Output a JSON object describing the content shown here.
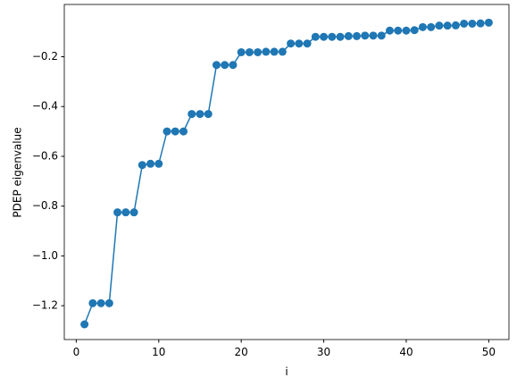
{
  "chart_data": {
    "type": "line",
    "xlabel": "i",
    "ylabel": "PDEP eigenvalue",
    "color": "#1f77b4",
    "x": [
      1,
      2,
      3,
      4,
      5,
      6,
      7,
      8,
      9,
      10,
      11,
      12,
      13,
      14,
      15,
      16,
      17,
      18,
      19,
      20,
      21,
      22,
      23,
      24,
      25,
      26,
      27,
      28,
      29,
      30,
      31,
      32,
      33,
      34,
      35,
      36,
      37,
      38,
      39,
      40,
      41,
      42,
      43,
      44,
      45,
      46,
      47,
      48,
      49,
      50
    ],
    "values": [
      -1.275,
      -1.19,
      -1.19,
      -1.19,
      -0.825,
      -0.825,
      -0.825,
      -0.635,
      -0.63,
      -0.63,
      -0.5,
      -0.5,
      -0.5,
      -0.43,
      -0.43,
      -0.43,
      -0.233,
      -0.233,
      -0.233,
      -0.182,
      -0.182,
      -0.182,
      -0.18,
      -0.18,
      -0.18,
      -0.147,
      -0.147,
      -0.147,
      -0.12,
      -0.12,
      -0.12,
      -0.12,
      -0.117,
      -0.117,
      -0.115,
      -0.115,
      -0.115,
      -0.095,
      -0.095,
      -0.095,
      -0.093,
      -0.081,
      -0.081,
      -0.075,
      -0.075,
      -0.074,
      -0.067,
      -0.067,
      -0.066,
      -0.063
    ],
    "xlim": [
      -1.45,
      52.45
    ],
    "xticks": [
      0,
      10,
      20,
      30,
      40,
      50
    ],
    "ylim": [
      -1.336,
      0.01
    ],
    "yticks": [
      {
        "value": -1.2,
        "label": "−1.2"
      },
      {
        "value": -1.0,
        "label": "−1.0"
      },
      {
        "value": -0.8,
        "label": "−0.8"
      },
      {
        "value": -0.6,
        "label": "−0.6"
      },
      {
        "value": -0.4,
        "label": "−0.4"
      },
      {
        "value": -0.2,
        "label": "−0.2"
      }
    ],
    "grid": false
  }
}
